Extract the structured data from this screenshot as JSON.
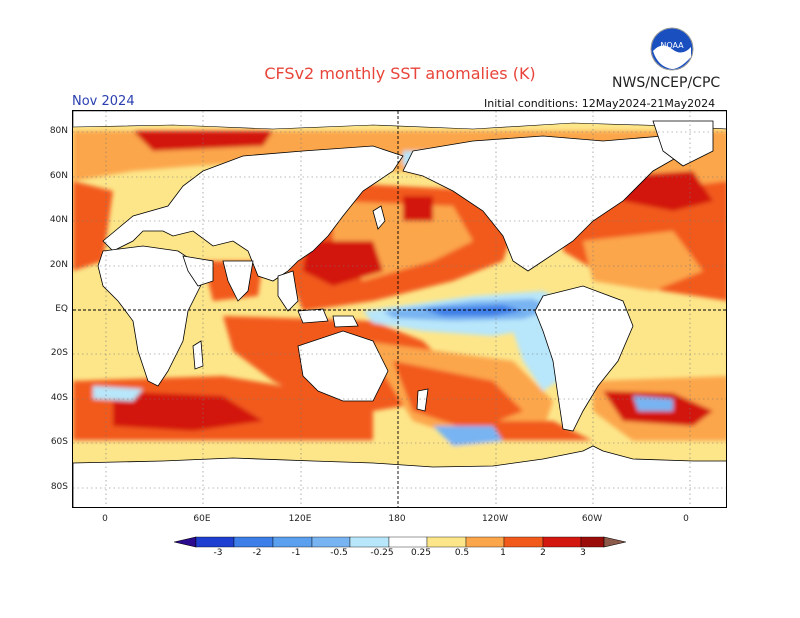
{
  "header": {
    "title": "CFSv2 monthly SST anomalies (K)",
    "agency": "NWS/NCEP/CPC",
    "month": "Nov 2024",
    "initial_conditions": "Initial conditions: 12May2024-21May2024"
  },
  "logo": {
    "icon": "noaa-logo-icon",
    "text": "NOAA"
  },
  "axes": {
    "y_ticks": [
      "80N",
      "60N",
      "40N",
      "20N",
      "EQ",
      "20S",
      "40S",
      "60S",
      "80S"
    ],
    "x_ticks": [
      "0",
      "60E",
      "120E",
      "180",
      "120W",
      "60W",
      "0"
    ]
  },
  "colorbar": {
    "ticks": [
      "-3",
      "-2",
      "-1",
      "-0.5",
      "-0.25",
      "0.25",
      "0.5",
      "1",
      "2",
      "3"
    ],
    "colors": [
      "#2a0a8f",
      "#1f3fd0",
      "#3d7ee8",
      "#78b4f2",
      "#b8e6fa",
      "#ffffff",
      "#fde68a",
      "#fca64b",
      "#f25a1c",
      "#d3190f",
      "#9b0d0a",
      "#8c5a4a"
    ]
  },
  "colors": {
    "title": "#e8443a",
    "land": "#ffffff",
    "warm_strong": "#d3190f",
    "warm": "#f25a1c",
    "warm_mid": "#fca64b",
    "warm_light": "#fde68a",
    "cool_light": "#b8e6fa",
    "cool": "#78b4f2",
    "cool_mid": "#3d7ee8"
  }
}
